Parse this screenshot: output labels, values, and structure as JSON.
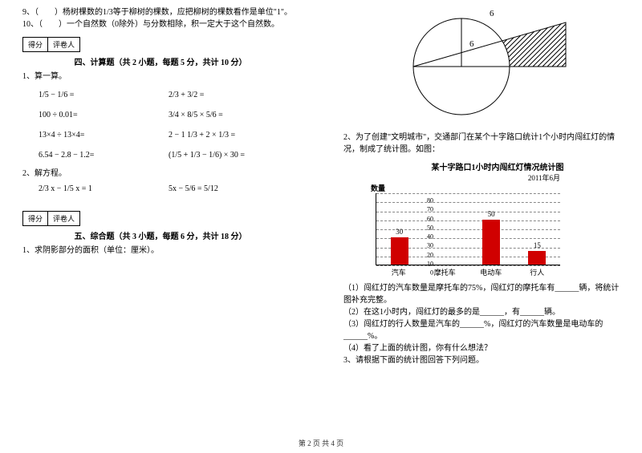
{
  "leftCol": {
    "q9": "9、（　　）杨树棵数的1/3等于柳树的棵数，应把柳树的棵数看作是单位\"1\"。",
    "q10": "10、（　　）一个自然数（0除外）与分数相除，积一定大于这个自然数。",
    "score_left": "得分",
    "score_right": "评卷人",
    "section4": "四、计算题（共 2 小题，每题 5 分，共计 10 分）",
    "p1": "1、算一算。",
    "eq1a": "1/5 − 1/6 =",
    "eq1b": "2/3 + 3/2 =",
    "eq2a": "100 ÷ 0.01=",
    "eq2b": "3/4 × 8/5 × 5/6 =",
    "eq3a": "13×4 ÷ 13×4=",
    "eq3b": "2 − 1 1/3 + 2 × 1/3 =",
    "eq4a": "6.54 − 2.8 − 1.2=",
    "eq4b": "(1/5 + 1/3 − 1/6) × 30 =",
    "p2": "2、解方程。",
    "eq5a": "2/3 x − 1/5 x = 1",
    "eq5b": "5x − 5/6 = 5/12",
    "section5": "五、综合题（共 3 小题，每题 6 分，共计 18 分）",
    "p5_1": "1、求阴影部分的面积（单位：厘米）。"
  },
  "rightCol": {
    "diagram": {
      "top_label": "6",
      "radius_label": "6"
    },
    "q2_intro": "2、为了创建\"文明城市\"，交通部门在某个十字路口统计1个小时内闯红灯的情况，制成了统计图。如图：",
    "chart": {
      "title": "某十字路口1小时内闯红灯情况统计图",
      "subtitle": "2011年6月",
      "ylabel": "数量",
      "ymax": 80,
      "ystep": 10,
      "categories": [
        "汽车",
        "摩托车",
        "电动车",
        "行人"
      ],
      "values": [
        30,
        null,
        50,
        15
      ],
      "labels": [
        "30",
        "",
        "50",
        "15"
      ],
      "bar_color": "#d00000",
      "bg": "#ffffff",
      "grid_color": "#888888"
    },
    "sub1": "（1）闯红灯的汽车数量是摩托车的75%，闯红灯的摩托车有______辆，将统计图补充完整。",
    "sub2": "（2）在这1小时内，闯红灯的最多的是______，有______辆。",
    "sub3": "（3）闯红灯的行人数量是汽车的______%，闯红灯的汽车数量是电动车的______%。",
    "sub4": "（4）看了上面的统计图，你有什么想法？",
    "q3": "3、请根据下面的统计图回答下列问题。"
  },
  "footer": "第 2 页  共 4 页"
}
